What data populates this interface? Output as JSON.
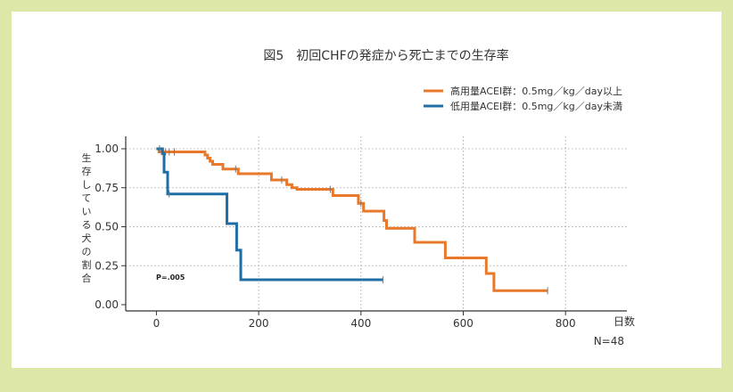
{
  "chart_data": {
    "type": "line",
    "title": "図5　初回CHFの発症から死亡までの生存率",
    "ylabel": "生存している犬の割合",
    "xlabel": "日数",
    "xlim": [
      -60,
      920
    ],
    "ylim": [
      -0.04,
      1.08
    ],
    "xticks": [
      0,
      200,
      400,
      600,
      800
    ],
    "yticks": [
      0.0,
      0.25,
      0.5,
      0.75,
      1.0
    ],
    "ytick_labels": [
      "0.00",
      "0.25",
      "0.50",
      "0.75",
      "1.00"
    ],
    "grid": true,
    "legend_position": "top-right",
    "annotation": "P=.005",
    "footnote": "N=48",
    "series": [
      {
        "name": "高用量ACEI群：0.5mg／kg／day以上",
        "color": "#e8782a",
        "points": [
          [
            0,
            1.0
          ],
          [
            5,
            0.98
          ],
          [
            90,
            0.98
          ],
          [
            95,
            0.96
          ],
          [
            100,
            0.94
          ],
          [
            105,
            0.92
          ],
          [
            110,
            0.9
          ],
          [
            130,
            0.87
          ],
          [
            150,
            0.87
          ],
          [
            160,
            0.84
          ],
          [
            180,
            0.84
          ],
          [
            225,
            0.8
          ],
          [
            245,
            0.8
          ],
          [
            255,
            0.77
          ],
          [
            265,
            0.75
          ],
          [
            275,
            0.74
          ],
          [
            335,
            0.74
          ],
          [
            345,
            0.7
          ],
          [
            385,
            0.7
          ],
          [
            395,
            0.65
          ],
          [
            405,
            0.6
          ],
          [
            435,
            0.6
          ],
          [
            445,
            0.54
          ],
          [
            450,
            0.49
          ],
          [
            500,
            0.49
          ],
          [
            505,
            0.4
          ],
          [
            560,
            0.4
          ],
          [
            565,
            0.3
          ],
          [
            640,
            0.3
          ],
          [
            645,
            0.2
          ],
          [
            655,
            0.2
          ],
          [
            660,
            0.09
          ],
          [
            765,
            0.09
          ]
        ],
        "censor_x": [
          10,
          18,
          25,
          35,
          155,
          245,
          340,
          400,
          765
        ]
      },
      {
        "name": "低用量ACEI群：0.5mg／kg／day未満",
        "color": "#1f6ea5",
        "points": [
          [
            0,
            1.0
          ],
          [
            10,
            1.0
          ],
          [
            12,
            0.97
          ],
          [
            15,
            0.85
          ],
          [
            22,
            0.71
          ],
          [
            133,
            0.71
          ],
          [
            138,
            0.52
          ],
          [
            152,
            0.52
          ],
          [
            157,
            0.35
          ],
          [
            162,
            0.35
          ],
          [
            165,
            0.16
          ],
          [
            443,
            0.16
          ]
        ],
        "censor_x": [
          6,
          25,
          443
        ]
      }
    ]
  }
}
